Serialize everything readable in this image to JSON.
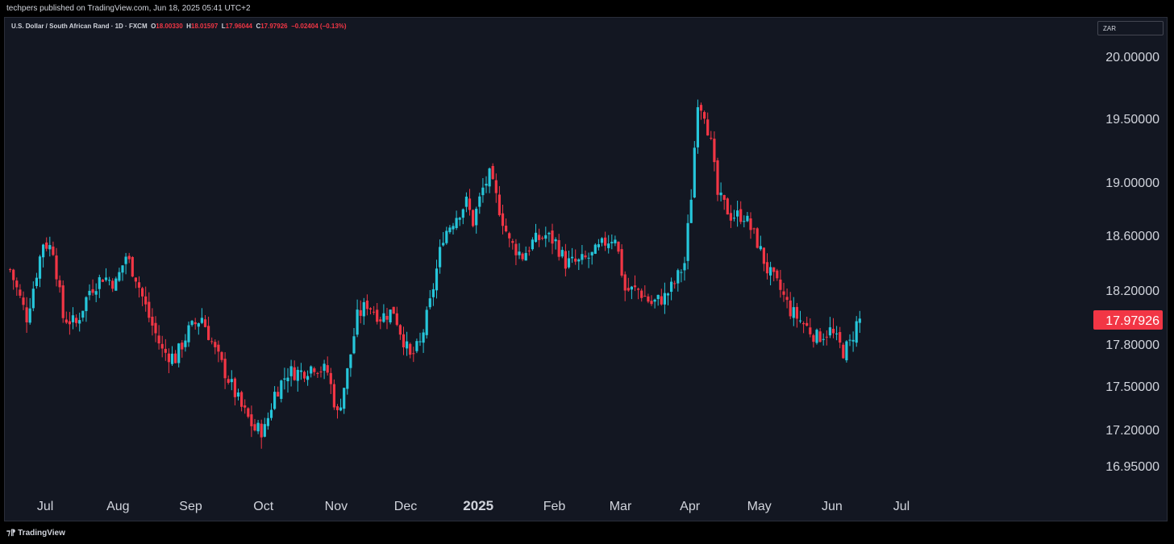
{
  "header": {
    "published": "techpers published on TradingView.com, Jun 18, 2025 05:41 UTC+2"
  },
  "legend": {
    "symbol": "U.S. Dollar / South African Rand · 1D · FXCM",
    "o_key": "O",
    "o_val": "18.00330",
    "h_key": "H",
    "h_val": "18.01597",
    "l_key": "L",
    "l_val": "17.96044",
    "c_key": "C",
    "c_val": "17.97926",
    "change": "−0.02404 (−0.13%)"
  },
  "currency_button": "ZAR",
  "footer": {
    "brand": "TradingView"
  },
  "colors": {
    "up": "#22ab94",
    "up_bright": "#26c6da",
    "down": "#f23645",
    "bg": "#131722",
    "text": "#d1d4dc"
  },
  "chart_data": {
    "type": "candlestick",
    "y_axis_labels": [
      "20.00000",
      "19.50000",
      "19.00000",
      "18.60000",
      "18.20000",
      "17.80000",
      "17.50000",
      "17.20000",
      "16.95000"
    ],
    "y_axis_values": [
      20.0,
      19.5,
      19.0,
      18.6,
      18.2,
      17.8,
      17.5,
      17.2,
      16.95
    ],
    "ylim": [
      16.8,
      20.2
    ],
    "last_price": "17.97926",
    "x_tick_labels": [
      "Jul",
      "Aug",
      "Sep",
      "Oct",
      "Nov",
      "Dec",
      "2025",
      "Feb",
      "Mar",
      "Apr",
      "May",
      "Jun",
      "Jul"
    ],
    "x_tick_index": [
      11,
      33,
      55,
      77,
      99,
      120,
      142,
      165,
      185,
      206,
      227,
      249,
      270
    ],
    "close_path": [
      [
        0,
        18.35
      ],
      [
        5,
        18.0
      ],
      [
        10,
        18.55
      ],
      [
        13,
        18.5
      ],
      [
        16,
        18.0
      ],
      [
        20,
        17.95
      ],
      [
        24,
        18.2
      ],
      [
        28,
        18.3
      ],
      [
        32,
        18.25
      ],
      [
        35,
        18.45
      ],
      [
        38,
        18.3
      ],
      [
        42,
        18.0
      ],
      [
        46,
        17.75
      ],
      [
        50,
        17.7
      ],
      [
        54,
        17.9
      ],
      [
        58,
        18.0
      ],
      [
        62,
        17.75
      ],
      [
        66,
        17.55
      ],
      [
        70,
        17.35
      ],
      [
        74,
        17.2
      ],
      [
        77,
        17.2
      ],
      [
        80,
        17.45
      ],
      [
        84,
        17.6
      ],
      [
        88,
        17.6
      ],
      [
        92,
        17.65
      ],
      [
        96,
        17.6
      ],
      [
        99,
        17.3
      ],
      [
        102,
        17.6
      ],
      [
        105,
        18.0
      ],
      [
        108,
        18.1
      ],
      [
        112,
        18.0
      ],
      [
        116,
        18.05
      ],
      [
        118,
        17.9
      ],
      [
        121,
        17.7
      ],
      [
        124,
        17.8
      ],
      [
        127,
        18.1
      ],
      [
        131,
        18.6
      ],
      [
        135,
        18.75
      ],
      [
        138,
        18.85
      ],
      [
        140,
        18.7
      ],
      [
        143,
        18.95
      ],
      [
        145,
        19.05
      ],
      [
        148,
        18.8
      ],
      [
        151,
        18.55
      ],
      [
        155,
        18.45
      ],
      [
        158,
        18.55
      ],
      [
        162,
        18.6
      ],
      [
        165,
        18.55
      ],
      [
        168,
        18.4
      ],
      [
        172,
        18.4
      ],
      [
        176,
        18.45
      ],
      [
        180,
        18.55
      ],
      [
        183,
        18.6
      ],
      [
        186,
        18.2
      ],
      [
        190,
        18.2
      ],
      [
        194,
        18.1
      ],
      [
        198,
        18.15
      ],
      [
        201,
        18.25
      ],
      [
        204,
        18.4
      ],
      [
        206,
        18.9
      ],
      [
        208,
        19.65
      ],
      [
        210,
        19.55
      ],
      [
        212,
        19.3
      ],
      [
        214,
        18.9
      ],
      [
        218,
        18.75
      ],
      [
        222,
        18.75
      ],
      [
        226,
        18.55
      ],
      [
        229,
        18.35
      ],
      [
        233,
        18.2
      ],
      [
        236,
        18.05
      ],
      [
        240,
        17.95
      ],
      [
        244,
        17.85
      ],
      [
        248,
        17.9
      ],
      [
        252,
        17.75
      ],
      [
        254,
        17.8
      ],
      [
        256,
        17.95
      ],
      [
        257,
        17.98
      ]
    ],
    "n_bars": 258,
    "seed": 7
  }
}
